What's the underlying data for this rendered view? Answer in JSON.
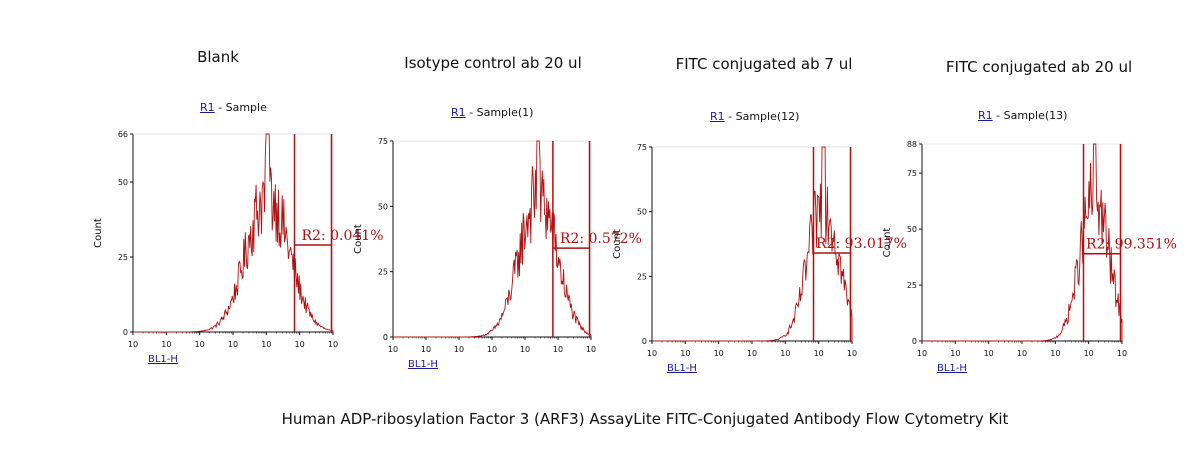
{
  "figure": {
    "caption": "Human ADP-ribosylation Factor 3 (ARF3) AssayLite FITC-Conjugated Antibody Flow Cytometry Kit"
  },
  "colors": {
    "histogram": "#b01010",
    "gate": "#b01010",
    "axis": "#111111",
    "gate_link": "#1a1aa0"
  },
  "chart_data": [
    {
      "type": "area",
      "title": "Blank",
      "gate_name": "R1",
      "sample": " - Sample",
      "xlabel": "BL1-H",
      "ylabel": "Count",
      "xscale": "log",
      "xlim": [
        1,
        1000000
      ],
      "ylim": [
        0,
        66
      ],
      "x_ticks": [
        "10",
        "10",
        "10",
        "10",
        "10",
        "10",
        "10"
      ],
      "y_ticks": [
        0,
        25,
        50,
        66
      ],
      "histogram": {
        "peak_x": 11000,
        "peak_y": 66,
        "spread": 0.19,
        "typical_y": 50
      },
      "gate_region": {
        "name": "R2",
        "label": "R2: 0.041%",
        "x_start": 70000,
        "x_end": 900000,
        "level_y": 29
      }
    },
    {
      "type": "area",
      "title": "Isotype control ab 20 ul",
      "gate_name": "R1",
      "sample": " - Sample(1)",
      "xlabel": "BL1-H",
      "ylabel": "Count",
      "xscale": "log",
      "xlim": [
        1,
        1000000
      ],
      "ylim": [
        0,
        75
      ],
      "x_ticks": [
        "10",
        "10",
        "10",
        "10",
        "10",
        "10",
        "10"
      ],
      "y_ticks": [
        0,
        25,
        50,
        75
      ],
      "histogram": {
        "peak_x": 25000,
        "peak_y": 75,
        "spread": 0.17,
        "typical_y": 58
      },
      "gate_region": {
        "name": "R2",
        "label": "R2: 0.572%",
        "x_start": 70000,
        "x_end": 900000,
        "level_y": 34
      }
    },
    {
      "type": "area",
      "title": "FITC conjugated ab 7 ul",
      "gate_name": "R1",
      "sample": " - Sample(12)",
      "xlabel": "BL1-H",
      "ylabel": "Count",
      "xscale": "log",
      "xlim": [
        1,
        1000000
      ],
      "ylim": [
        0,
        75
      ],
      "x_ticks": [
        "10",
        "10",
        "10",
        "10",
        "10",
        "10",
        "10"
      ],
      "y_ticks": [
        0,
        25,
        50,
        75
      ],
      "histogram": {
        "peak_x": 140000,
        "peak_y": 75,
        "spread": 0.14,
        "typical_y": 58
      },
      "gate_region": {
        "name": "R2",
        "label": "R2: 93.017%",
        "x_start": 70000,
        "x_end": 900000,
        "level_y": 34
      }
    },
    {
      "type": "area",
      "title": "FITC conjugated ab 20 ul",
      "gate_name": "R1",
      "sample": " - Sample(13)",
      "xlabel": "BL1-H",
      "ylabel": "Count",
      "xscale": "log",
      "xlim": [
        1,
        1000000
      ],
      "ylim": [
        0,
        88
      ],
      "x_ticks": [
        "10",
        "10",
        "10",
        "10",
        "10",
        "10",
        "10"
      ],
      "y_ticks": [
        0,
        25,
        50,
        75,
        88
      ],
      "histogram": {
        "peak_x": 150000,
        "peak_y": 88,
        "spread": 0.13,
        "typical_y": 70
      },
      "gate_region": {
        "name": "R2",
        "label": "R2: 99.351%",
        "x_start": 70000,
        "x_end": 900000,
        "level_y": 39
      }
    }
  ]
}
